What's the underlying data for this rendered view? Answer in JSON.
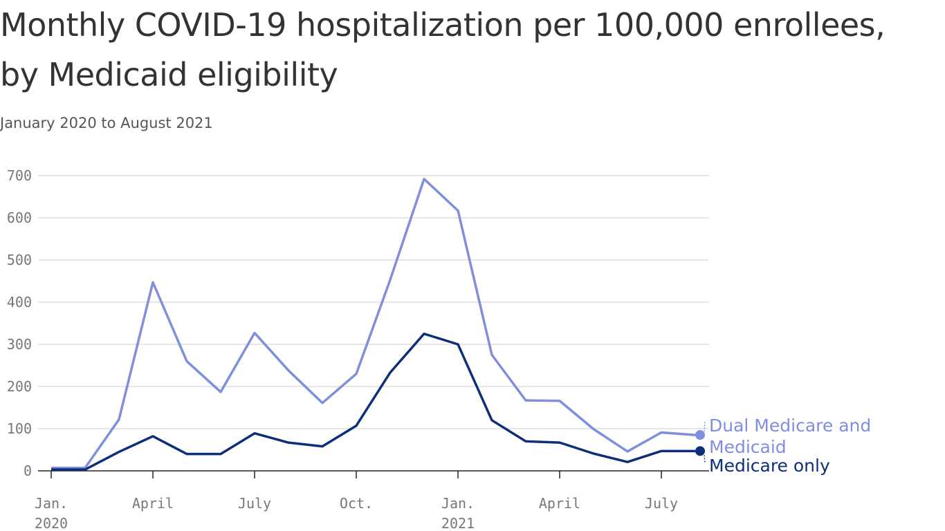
{
  "title": "Monthly COVID-19 hospitalization per 100,000 enrollees, by Medicaid eligibility",
  "subtitle": "January 2020 to August 2021",
  "colors": {
    "dual": "#7f8fdd",
    "medicare": "#0d2f7a",
    "grid": "#dddddd",
    "axis": "#222222"
  },
  "chart_data": {
    "type": "line",
    "title": "Monthly COVID-19 hospitalization per 100,000 enrollees, by Medicaid eligibility",
    "subtitle": "January 2020 to August 2021",
    "xlabel": "",
    "ylabel": "",
    "ylim": [
      0,
      700
    ],
    "yticks": [
      0,
      100,
      200,
      300,
      400,
      500,
      600,
      700
    ],
    "grid": true,
    "x": [
      "2020-01",
      "2020-02",
      "2020-03",
      "2020-04",
      "2020-05",
      "2020-06",
      "2020-07",
      "2020-08",
      "2020-09",
      "2020-10",
      "2020-11",
      "2020-12",
      "2021-01",
      "2021-02",
      "2021-03",
      "2021-04",
      "2021-05",
      "2021-06",
      "2021-07",
      "2021-08"
    ],
    "xticks": [
      {
        "x": "2020-01",
        "label": "Jan.",
        "sublabel": "2020"
      },
      {
        "x": "2020-04",
        "label": "April",
        "sublabel": ""
      },
      {
        "x": "2020-07",
        "label": "July",
        "sublabel": ""
      },
      {
        "x": "2020-10",
        "label": "Oct.",
        "sublabel": ""
      },
      {
        "x": "2021-01",
        "label": "Jan.",
        "sublabel": "2021"
      },
      {
        "x": "2021-04",
        "label": "April",
        "sublabel": ""
      },
      {
        "x": "2021-07",
        "label": "July",
        "sublabel": ""
      }
    ],
    "series": [
      {
        "key": "dual",
        "name": "Dual Medicare and Medicaid",
        "label_lines": [
          "Dual Medicare and",
          "Medicaid"
        ],
        "values": [
          7,
          7,
          122,
          447,
          260,
          187,
          327,
          238,
          161,
          230,
          453,
          692,
          617,
          275,
          167,
          166,
          99,
          46,
          91,
          85
        ]
      },
      {
        "key": "medicare",
        "name": "Medicare only",
        "label_lines": [
          "Medicare only"
        ],
        "values": [
          3,
          3,
          45,
          82,
          40,
          40,
          89,
          67,
          58,
          107,
          233,
          325,
          300,
          120,
          70,
          67,
          41,
          21,
          47,
          47
        ]
      }
    ]
  }
}
